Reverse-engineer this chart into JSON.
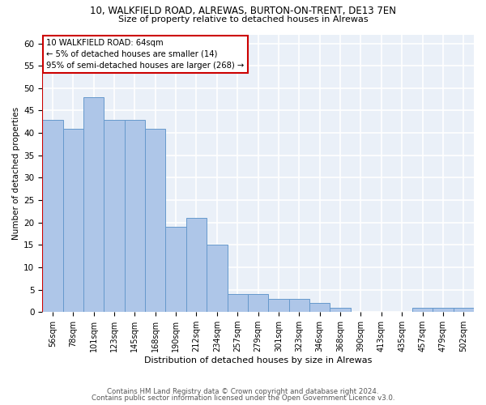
{
  "title1": "10, WALKFIELD ROAD, ALREWAS, BURTON-ON-TRENT, DE13 7EN",
  "title2": "Size of property relative to detached houses in Alrewas",
  "xlabel": "Distribution of detached houses by size in Alrewas",
  "ylabel": "Number of detached properties",
  "categories": [
    "56sqm",
    "78sqm",
    "101sqm",
    "123sqm",
    "145sqm",
    "168sqm",
    "190sqm",
    "212sqm",
    "234sqm",
    "257sqm",
    "279sqm",
    "301sqm",
    "323sqm",
    "346sqm",
    "368sqm",
    "390sqm",
    "413sqm",
    "435sqm",
    "457sqm",
    "479sqm",
    "502sqm"
  ],
  "values": [
    43,
    41,
    48,
    43,
    43,
    41,
    19,
    21,
    15,
    4,
    4,
    3,
    3,
    2,
    1,
    0,
    0,
    0,
    1,
    1,
    1
  ],
  "bar_color": "#aec6e8",
  "bar_edge_color": "#6699cc",
  "annotation_box_color": "#cc0000",
  "annotation_line1": "10 WALKFIELD ROAD: 64sqm",
  "annotation_line2": "← 5% of detached houses are smaller (14)",
  "annotation_line3": "95% of semi-detached houses are larger (268) →",
  "ylim": [
    0,
    62
  ],
  "yticks": [
    0,
    5,
    10,
    15,
    20,
    25,
    30,
    35,
    40,
    45,
    50,
    55,
    60
  ],
  "bg_color": "#eaf0f8",
  "grid_color": "#ffffff",
  "footer1": "Contains HM Land Registry data © Crown copyright and database right 2024.",
  "footer2": "Contains public sector information licensed under the Open Government Licence v3.0."
}
